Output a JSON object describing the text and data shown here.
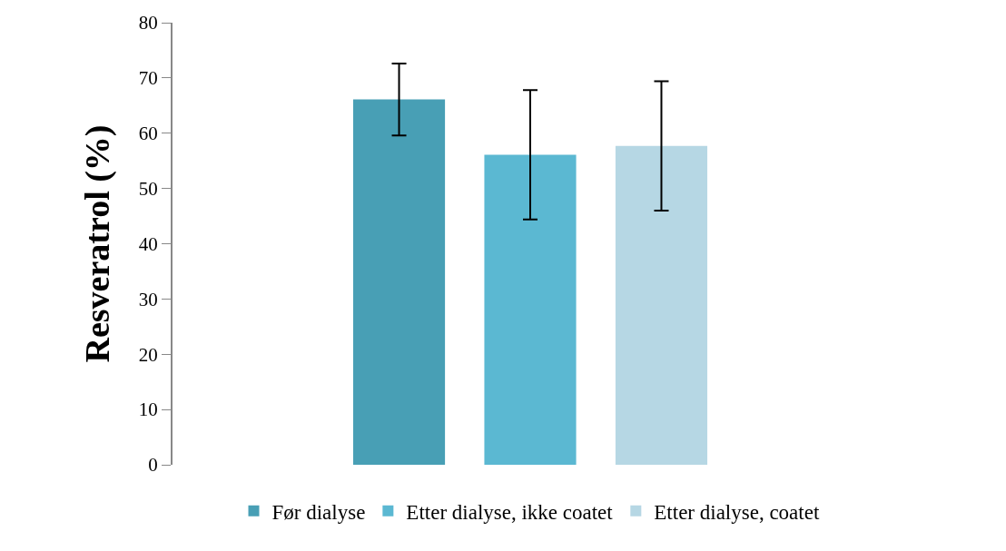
{
  "chart_data": {
    "type": "bar",
    "ylabel": "Resveratrol (%)",
    "categories": [
      null
    ],
    "series": [
      {
        "name": "Før dialyse",
        "color": "#489fb5",
        "values": [
          66.1
        ],
        "errors": [
          6.5
        ]
      },
      {
        "name": "Etter dialyse, ikke coatet",
        "color": "#5bb8d2",
        "values": [
          56.1
        ],
        "errors": [
          11.7
        ]
      },
      {
        "name": "Etter dialyse, coatet",
        "color": "#b6d7e4",
        "values": [
          57.7
        ],
        "errors": [
          11.7
        ]
      }
    ],
    "ylim": [
      0,
      80
    ],
    "yticks": [
      0,
      10,
      20,
      30,
      40,
      50,
      60,
      70,
      80
    ],
    "legend": "bottom",
    "grid": false
  }
}
